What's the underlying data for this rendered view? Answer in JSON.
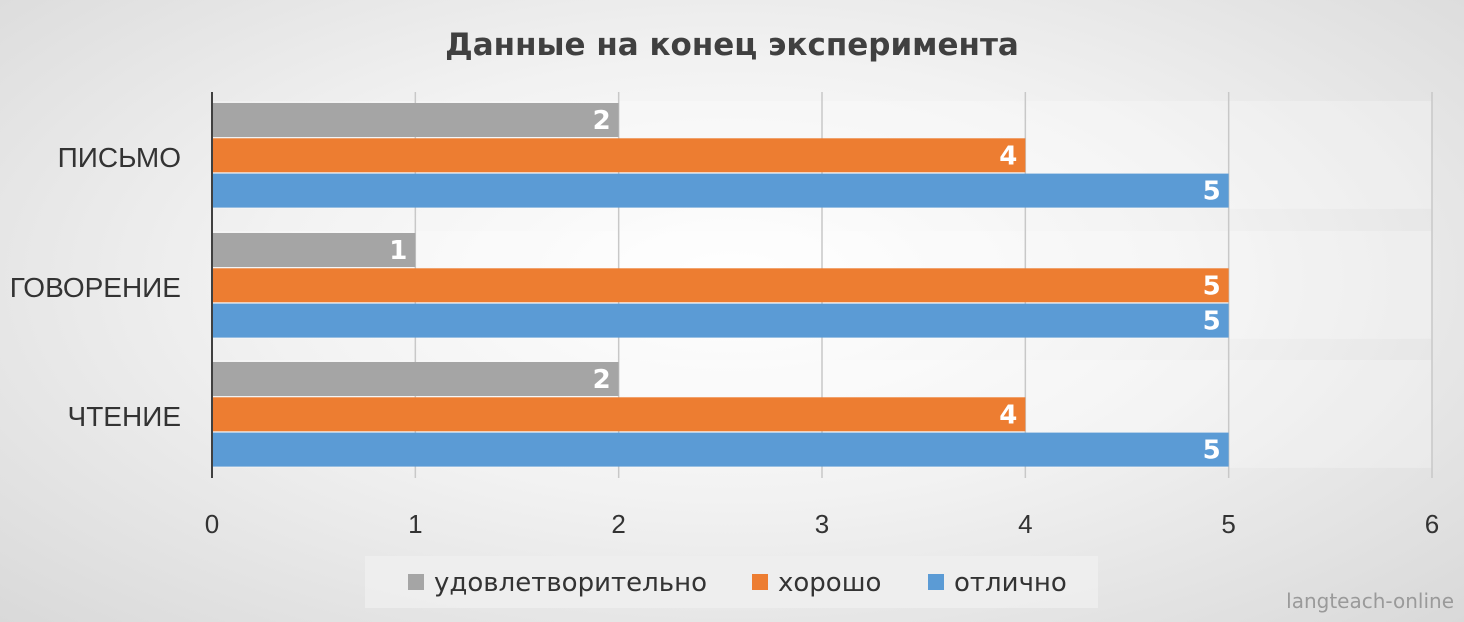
{
  "chart_data": {
    "type": "bar",
    "orientation": "horizontal",
    "title": "Данные на конец эксперимента",
    "categories": [
      "ПИСЬМО",
      "ГОВОРЕНИЕ",
      "ЧТЕНИЕ"
    ],
    "series": [
      {
        "name": "удовлетворительно",
        "color": "#a5a5a5",
        "values": [
          2,
          1,
          2
        ]
      },
      {
        "name": "хорошо",
        "color": "#ed7d31",
        "values": [
          4,
          5,
          4
        ]
      },
      {
        "name": "отлично",
        "color": "#5b9bd5",
        "values": [
          5,
          5,
          5
        ]
      }
    ],
    "xlim": [
      0,
      6
    ],
    "xticks": [
      "0",
      "1",
      "2",
      "3",
      "4",
      "5",
      "6"
    ],
    "grid": true,
    "legend": "bottom",
    "data_labels": true
  },
  "watermark": "langteach-online"
}
